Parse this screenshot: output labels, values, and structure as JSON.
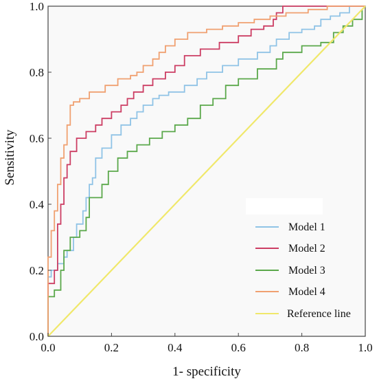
{
  "chart_data": {
    "type": "line",
    "xlabel": "1- specificity",
    "ylabel": "Sensitivity",
    "xlim": [
      0.0,
      1.0
    ],
    "ylim": [
      0.0,
      1.0
    ],
    "x_ticks": [
      "0.0",
      "0.2",
      "0.4",
      "0.6",
      "0.8",
      "1.0"
    ],
    "y_ticks": [
      "0.0",
      "0.2",
      "0.4",
      "0.6",
      "0.8",
      "1.0"
    ],
    "grid": false,
    "legend_position": "bottom-right",
    "series": [
      {
        "name": "Model 1",
        "color": "#8fc3e6",
        "x": [
          0.0,
          0.0,
          0.01,
          0.01,
          0.03,
          0.03,
          0.05,
          0.05,
          0.06,
          0.06,
          0.08,
          0.08,
          0.09,
          0.09,
          0.11,
          0.11,
          0.12,
          0.12,
          0.13,
          0.13,
          0.14,
          0.14,
          0.15,
          0.15,
          0.17,
          0.17,
          0.2,
          0.2,
          0.23,
          0.23,
          0.26,
          0.26,
          0.28,
          0.28,
          0.3,
          0.3,
          0.33,
          0.33,
          0.35,
          0.35,
          0.38,
          0.38,
          0.43,
          0.43,
          0.47,
          0.47,
          0.5,
          0.5,
          0.55,
          0.55,
          0.6,
          0.6,
          0.66,
          0.66,
          0.7,
          0.7,
          0.72,
          0.72,
          0.76,
          0.76,
          0.8,
          0.8,
          0.84,
          0.84,
          0.86,
          0.86,
          0.89,
          0.89,
          0.92,
          0.92,
          0.95,
          0.95,
          1.0
        ],
        "y": [
          0.0,
          0.18,
          0.18,
          0.2,
          0.2,
          0.22,
          0.22,
          0.24,
          0.24,
          0.26,
          0.26,
          0.3,
          0.3,
          0.34,
          0.34,
          0.38,
          0.38,
          0.42,
          0.42,
          0.46,
          0.46,
          0.48,
          0.48,
          0.54,
          0.54,
          0.57,
          0.57,
          0.61,
          0.61,
          0.64,
          0.64,
          0.66,
          0.66,
          0.68,
          0.68,
          0.7,
          0.7,
          0.72,
          0.72,
          0.73,
          0.73,
          0.74,
          0.74,
          0.76,
          0.76,
          0.78,
          0.78,
          0.8,
          0.8,
          0.82,
          0.82,
          0.84,
          0.84,
          0.86,
          0.86,
          0.88,
          0.88,
          0.9,
          0.9,
          0.92,
          0.92,
          0.93,
          0.93,
          0.94,
          0.94,
          0.96,
          0.96,
          0.97,
          0.97,
          0.98,
          0.98,
          1.0,
          1.0
        ]
      },
      {
        "name": "Model 2",
        "color": "#cc3d63",
        "x": [
          0.0,
          0.0,
          0.02,
          0.02,
          0.03,
          0.03,
          0.04,
          0.04,
          0.05,
          0.05,
          0.06,
          0.06,
          0.07,
          0.07,
          0.09,
          0.09,
          0.12,
          0.12,
          0.15,
          0.15,
          0.17,
          0.17,
          0.2,
          0.2,
          0.23,
          0.23,
          0.25,
          0.25,
          0.27,
          0.27,
          0.3,
          0.3,
          0.33,
          0.33,
          0.37,
          0.37,
          0.4,
          0.4,
          0.43,
          0.43,
          0.48,
          0.48,
          0.54,
          0.54,
          0.6,
          0.6,
          0.64,
          0.64,
          0.68,
          0.68,
          0.71,
          0.71,
          0.72,
          0.72,
          0.74,
          0.74,
          1.0,
          1.0
        ],
        "y": [
          0.0,
          0.16,
          0.16,
          0.2,
          0.2,
          0.34,
          0.34,
          0.4,
          0.4,
          0.48,
          0.48,
          0.52,
          0.52,
          0.56,
          0.56,
          0.6,
          0.6,
          0.62,
          0.62,
          0.64,
          0.64,
          0.66,
          0.66,
          0.68,
          0.68,
          0.7,
          0.7,
          0.72,
          0.72,
          0.74,
          0.74,
          0.76,
          0.76,
          0.78,
          0.78,
          0.8,
          0.8,
          0.82,
          0.82,
          0.85,
          0.85,
          0.87,
          0.87,
          0.89,
          0.89,
          0.91,
          0.91,
          0.93,
          0.93,
          0.94,
          0.94,
          0.96,
          0.96,
          0.98,
          0.98,
          1.0,
          1.0,
          1.0
        ]
      },
      {
        "name": "Model 3",
        "color": "#5aa84a",
        "x": [
          0.0,
          0.0,
          0.02,
          0.02,
          0.04,
          0.04,
          0.05,
          0.05,
          0.07,
          0.07,
          0.1,
          0.1,
          0.12,
          0.12,
          0.13,
          0.13,
          0.17,
          0.17,
          0.19,
          0.19,
          0.22,
          0.22,
          0.25,
          0.25,
          0.28,
          0.28,
          0.32,
          0.32,
          0.36,
          0.36,
          0.4,
          0.4,
          0.44,
          0.44,
          0.48,
          0.48,
          0.52,
          0.52,
          0.56,
          0.56,
          0.6,
          0.6,
          0.66,
          0.66,
          0.72,
          0.72,
          0.74,
          0.74,
          0.8,
          0.8,
          0.86,
          0.86,
          0.9,
          0.9,
          0.93,
          0.93,
          0.96,
          0.96,
          0.99,
          0.99,
          1.0
        ],
        "y": [
          0.0,
          0.12,
          0.12,
          0.14,
          0.14,
          0.2,
          0.2,
          0.26,
          0.26,
          0.3,
          0.3,
          0.32,
          0.32,
          0.36,
          0.36,
          0.42,
          0.42,
          0.46,
          0.46,
          0.5,
          0.5,
          0.54,
          0.54,
          0.56,
          0.56,
          0.58,
          0.58,
          0.6,
          0.6,
          0.62,
          0.62,
          0.64,
          0.64,
          0.66,
          0.66,
          0.7,
          0.7,
          0.72,
          0.72,
          0.76,
          0.76,
          0.78,
          0.78,
          0.81,
          0.81,
          0.84,
          0.84,
          0.86,
          0.86,
          0.88,
          0.88,
          0.89,
          0.89,
          0.92,
          0.92,
          0.94,
          0.94,
          0.96,
          0.96,
          0.99,
          1.0
        ]
      },
      {
        "name": "Model 4",
        "color": "#f0a070",
        "x": [
          0.0,
          0.0,
          0.01,
          0.01,
          0.02,
          0.02,
          0.03,
          0.03,
          0.04,
          0.04,
          0.05,
          0.05,
          0.06,
          0.06,
          0.07,
          0.07,
          0.08,
          0.08,
          0.1,
          0.1,
          0.13,
          0.13,
          0.18,
          0.18,
          0.22,
          0.22,
          0.26,
          0.26,
          0.28,
          0.28,
          0.3,
          0.3,
          0.33,
          0.33,
          0.35,
          0.35,
          0.37,
          0.37,
          0.4,
          0.4,
          0.44,
          0.44,
          0.5,
          0.5,
          0.55,
          0.55,
          0.6,
          0.6,
          0.65,
          0.65,
          0.7,
          0.7,
          0.75,
          0.75,
          0.82,
          0.82,
          0.88,
          0.88,
          1.0,
          1.0
        ],
        "y": [
          0.0,
          0.24,
          0.24,
          0.32,
          0.32,
          0.38,
          0.38,
          0.46,
          0.46,
          0.54,
          0.54,
          0.58,
          0.58,
          0.64,
          0.64,
          0.7,
          0.7,
          0.71,
          0.71,
          0.72,
          0.72,
          0.74,
          0.74,
          0.76,
          0.76,
          0.78,
          0.78,
          0.79,
          0.79,
          0.8,
          0.8,
          0.82,
          0.82,
          0.84,
          0.84,
          0.86,
          0.86,
          0.88,
          0.88,
          0.9,
          0.9,
          0.92,
          0.92,
          0.93,
          0.93,
          0.94,
          0.94,
          0.95,
          0.95,
          0.96,
          0.96,
          0.97,
          0.97,
          0.98,
          0.98,
          0.99,
          0.99,
          1.0,
          1.0,
          1.0
        ]
      },
      {
        "name": "Reference line",
        "color": "#f0e86a",
        "x": [
          0.0,
          1.0
        ],
        "y": [
          0.0,
          1.0
        ]
      }
    ]
  }
}
